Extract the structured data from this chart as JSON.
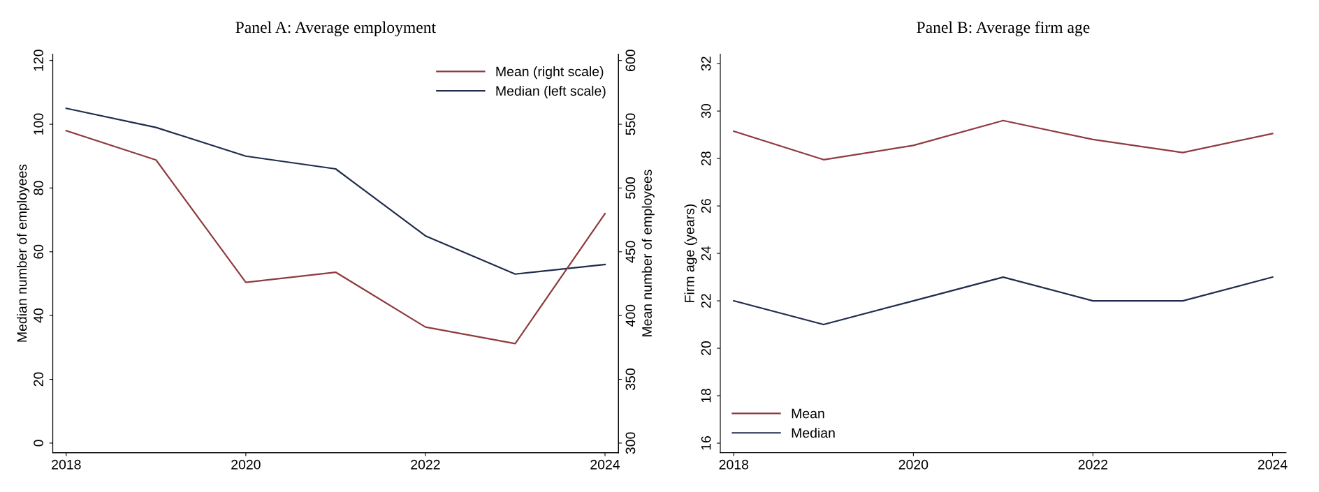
{
  "chart_data": [
    {
      "type": "line",
      "title": "Panel A: Average employment",
      "ylabel": "Median number of employees",
      "y2label": "Mean number of employees",
      "x": [
        2018,
        2019,
        2020,
        2021,
        2022,
        2023,
        2024
      ],
      "series": [
        {
          "name": "Mean (right scale)",
          "color": "#8f3b40",
          "axis": "y2",
          "values": [
            545,
            522,
            426,
            434,
            391,
            378,
            480
          ]
        },
        {
          "name": "Median (left scale)",
          "color": "#1f2c4c",
          "values": [
            105,
            99,
            90,
            86,
            65,
            53,
            56
          ]
        }
      ],
      "xlim": [
        2017.85,
        2024.15
      ],
      "xticks": [
        2018,
        2020,
        2022,
        2024
      ],
      "ylim": [
        -3,
        122
      ],
      "yticks": [
        0,
        20,
        40,
        60,
        80,
        100,
        120
      ],
      "y2lim": [
        292.5,
        605
      ],
      "y2ticks": [
        300,
        350,
        400,
        450,
        500,
        550,
        600
      ],
      "grid": false,
      "legend": "top right",
      "marker": "none",
      "line_style": "solid"
    },
    {
      "type": "line",
      "title": "Panel B: Average firm age",
      "ylabel": "Firm age (years)",
      "x": [
        2018,
        2019,
        2020,
        2021,
        2022,
        2023,
        2024
      ],
      "series": [
        {
          "name": "Mean",
          "color": "#8f3b40",
          "values": [
            29.15,
            27.95,
            28.55,
            29.6,
            28.8,
            28.25,
            29.05
          ]
        },
        {
          "name": "Median",
          "color": "#1f2c4c",
          "values": [
            22,
            21,
            22,
            23,
            22,
            22,
            23
          ]
        }
      ],
      "xlim": [
        2017.85,
        2024.15
      ],
      "xticks": [
        2018,
        2020,
        2022,
        2024
      ],
      "ylim": [
        15.6,
        32.4
      ],
      "yticks": [
        16,
        18,
        20,
        22,
        24,
        26,
        28,
        30,
        32
      ],
      "grid": false,
      "legend": "bottom left",
      "marker": "none",
      "line_style": "solid"
    }
  ]
}
